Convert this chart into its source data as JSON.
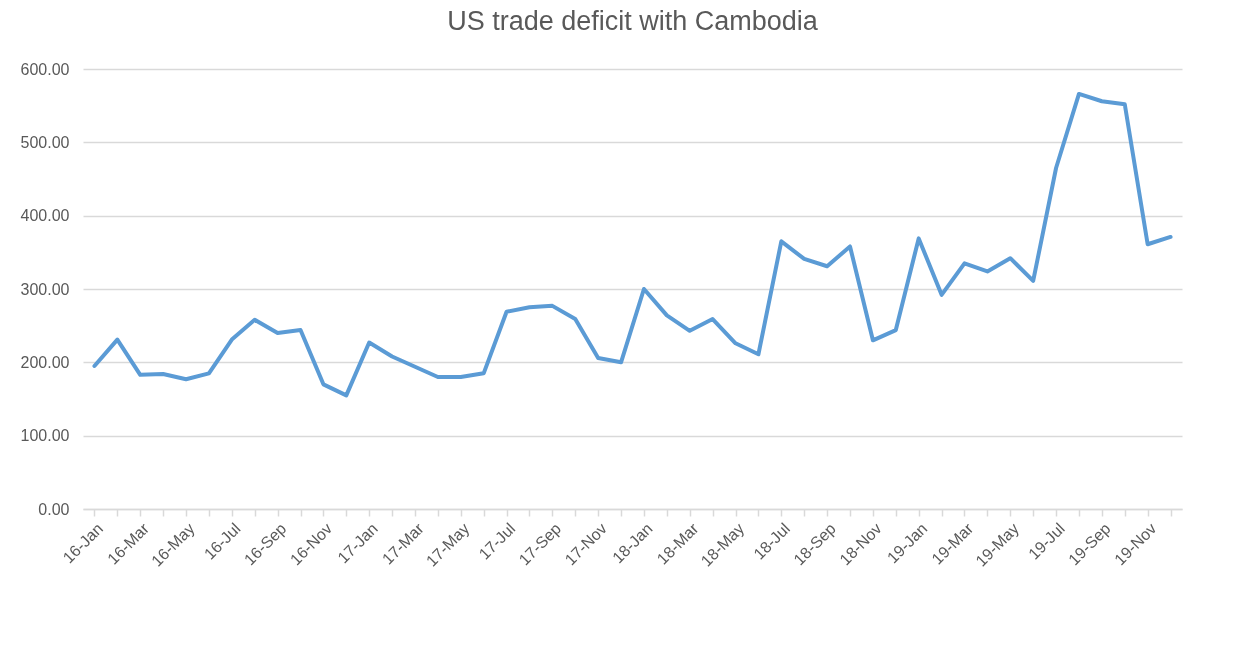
{
  "chart_data": {
    "type": "line",
    "title": "US trade deficit with Cambodia",
    "categories": [
      "16-Jan",
      null,
      "16-Mar",
      null,
      "16-May",
      null,
      "16-Jul",
      null,
      "16-Sep",
      null,
      "16-Nov",
      null,
      "17-Jan",
      null,
      "17-Mar",
      null,
      "17-May",
      null,
      "17-Jul",
      null,
      "17-Sep",
      null,
      "17-Nov",
      null,
      "18-Jan",
      null,
      "18-Mar",
      null,
      "18-May",
      null,
      "18-Jul",
      null,
      "18-Sep",
      null,
      "18-Nov",
      null,
      "19-Jan",
      null,
      "19-Mar",
      null,
      "19-May",
      null,
      "19-Jul",
      null,
      "19-Sep",
      null,
      "19-Nov",
      null
    ],
    "series": [
      {
        "color": "#5b9bd5",
        "values": [
          195,
          231,
          183,
          184,
          177,
          185,
          231,
          258,
          240,
          244,
          170,
          155,
          227,
          208,
          194,
          180,
          180,
          185,
          269,
          275,
          277,
          259,
          206,
          200,
          300,
          264,
          243,
          259,
          226,
          211,
          365,
          341,
          331,
          358,
          230,
          244,
          369,
          292,
          335,
          324,
          342,
          311,
          465,
          566,
          556,
          552,
          361,
          371
        ]
      }
    ],
    "ylim": [
      0,
      600
    ],
    "yticks": [
      {
        "value": 0,
        "label": "0.00"
      },
      {
        "value": 100,
        "label": "100.00"
      },
      {
        "value": 200,
        "label": "200.00"
      },
      {
        "value": 300,
        "label": "300.00"
      },
      {
        "value": 400,
        "label": "400.00"
      },
      {
        "value": 500,
        "label": "500.00"
      },
      {
        "value": 600,
        "label": "600.00"
      }
    ],
    "grid": "y",
    "legend": false,
    "marker": "none",
    "line_style": "solid"
  }
}
